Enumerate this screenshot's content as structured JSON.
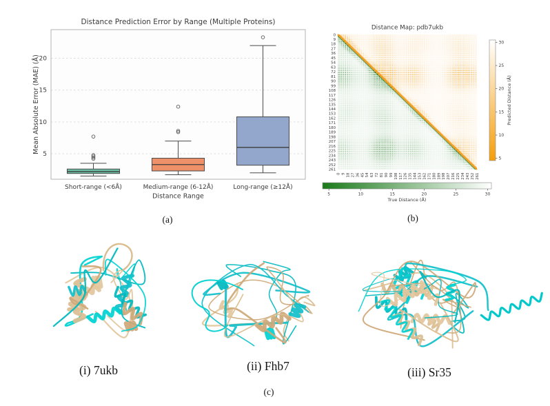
{
  "figure": {
    "panel_a": {
      "caption": "(a)"
    },
    "panel_b": {
      "caption": "(b)"
    },
    "panel_c": {
      "caption": "(c)",
      "proteins": [
        {
          "label": "(i) 7ukb"
        },
        {
          "label": "(ii) Fhb7"
        },
        {
          "label": "(iii) Sr35"
        }
      ]
    }
  },
  "colors": {
    "box_short": "#6cbfa4",
    "box_medium": "#ee9168",
    "box_long": "#93a6cb",
    "heatmap_predicted_low": "#f59e0b",
    "heatmap_true_low": "#1b7a1b",
    "heatmap_high": "#ffffff",
    "cartoon_cyan": "#00d0d0",
    "cartoon_wheat": "#d9b98c"
  },
  "chart_data": [
    {
      "type": "box",
      "title": "Distance Prediction Error by Range (Multiple Proteins)",
      "xlabel": "Distance Range",
      "ylabel": "Mean Absolute Error (MAE) (Å)",
      "categories": [
        "Short-range (<6Å)",
        "Medium-range (6-12Å)",
        "Long-range (≥12Å)"
      ],
      "yticks": [
        5,
        10,
        15,
        20
      ],
      "ylim": [
        1.0,
        24.5
      ],
      "grid": "horizontal-dashed",
      "legend": "none",
      "boxes": [
        {
          "category": "Short-range (<6Å)",
          "color": "#6cbfa4",
          "whisker_low": 1.5,
          "q1": 1.9,
          "median": 2.2,
          "q3": 2.6,
          "whisker_high": 3.5,
          "outliers": [
            4.2,
            4.4,
            4.6,
            4.8,
            7.7
          ]
        },
        {
          "category": "Medium-range (6-12Å)",
          "color": "#ee9168",
          "whisker_low": 1.7,
          "q1": 2.3,
          "median": 3.3,
          "q3": 4.3,
          "whisker_high": 7.0,
          "outliers": [
            8.4,
            8.6,
            12.4
          ]
        },
        {
          "category": "Long-range (≥12Å)",
          "color": "#93a6cb",
          "whisker_low": 2.0,
          "q1": 3.2,
          "median": 6.0,
          "q3": 10.8,
          "whisker_high": 22.0,
          "outliers": [
            23.3
          ]
        }
      ]
    },
    {
      "type": "heatmap",
      "title": "Distance Map: pdb7ukb",
      "n_residues": 262,
      "residue_ticks": [
        0,
        9,
        18,
        27,
        36,
        45,
        54,
        63,
        72,
        81,
        90,
        99,
        108,
        117,
        126,
        135,
        144,
        153,
        162,
        171,
        180,
        189,
        198,
        207,
        216,
        225,
        234,
        243,
        252,
        261
      ],
      "upper_triangle": {
        "quantity": "Predicted Distance (Å)",
        "low_color": "#f59e0b",
        "high_color": "#ffffff"
      },
      "lower_triangle": {
        "quantity": "True Distance (Å)",
        "low_color": "#1b7a1b",
        "high_color": "#ffffff"
      },
      "colorbar_right": {
        "label": "Predicted Distance (Å)",
        "ticks": [
          5,
          10,
          15,
          20,
          25,
          30
        ],
        "range": [
          4.5,
          30.5
        ]
      },
      "colorbar_bottom": {
        "label": "True Distance (Å)",
        "ticks": [
          5,
          10,
          15,
          20,
          25,
          30
        ],
        "range": [
          4.0,
          30.6
        ]
      }
    }
  ]
}
